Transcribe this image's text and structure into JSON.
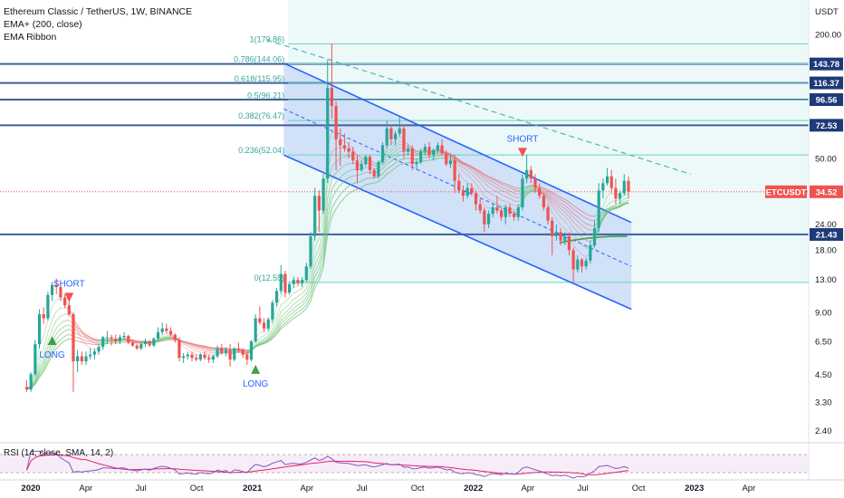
{
  "legend": {
    "symbol_line": "Ethereum Classic / TetherUS, 1W, BINANCE",
    "indicator_1": "EMA+ (200, close)",
    "indicator_2": "EMA Ribbon"
  },
  "rsi_legend": "RSI (14, close, SMA, 14, 2)",
  "currency": "USDT",
  "colors": {
    "up": "#26a69a",
    "down": "#ef5350",
    "channel": "#2962ff",
    "channel_fill": "#c9dbf7",
    "fib_zone": "#e6f7f5",
    "fib_line": "#6ad0c0",
    "hline": "#3f5f9e",
    "current": "#ef5350"
  },
  "chart_data": {
    "type": "candlestick",
    "title": "Ethereum Classic / TetherUS, 1W, BINANCE",
    "y_scale": "log",
    "x_ticks": [
      "2020",
      "Apr",
      "Jul",
      "Oct",
      "2021",
      "Apr",
      "Jul",
      "Oct",
      "2022",
      "Apr",
      "Jul",
      "Oct",
      "2023",
      "Apr"
    ],
    "x_tick_dates": [
      "2020-01-01",
      "2020-04-01",
      "2020-07-01",
      "2020-10-01",
      "2021-01-01",
      "2021-04-01",
      "2021-07-01",
      "2021-10-01",
      "2022-01-01",
      "2022-04-01",
      "2022-07-01",
      "2022-10-01",
      "2023-01-01",
      "2023-04-01"
    ],
    "y_ticks": [
      200.0,
      50.0,
      24.0,
      18.0,
      13.0,
      9.0,
      6.5,
      4.5,
      3.3,
      2.4
    ],
    "y_tick_labels": [
      "200.00",
      "50.00",
      "24.00",
      "18.00",
      "13.00",
      "9.00",
      "6.50",
      "4.50",
      "3.30",
      "2.40"
    ],
    "price_labels": [
      {
        "text": "143.78",
        "value": 143.78
      },
      {
        "text": "116.37",
        "value": 116.37
      },
      {
        "text": "96.56",
        "value": 96.56
      },
      {
        "text": "72.53",
        "value": 72.53
      },
      {
        "text": "21.43",
        "value": 21.43
      }
    ],
    "current": {
      "symbol": "ETCUSDT",
      "text": "34.52",
      "value": 34.52
    },
    "fib_levels": [
      {
        "label": "1(179.86)",
        "value": 179.86
      },
      {
        "label": "0.786(144.06)",
        "value": 144.06
      },
      {
        "label": "0.618(115.95)",
        "value": 115.95
      },
      {
        "label": "0.5(96.21)",
        "value": 96.21
      },
      {
        "label": "0.382(76.47)",
        "value": 76.47
      },
      {
        "label": "0.236(52.04)",
        "value": 52.04
      },
      {
        "label": "0(12.55)",
        "value": 12.55
      }
    ],
    "channel": {
      "upper": [
        [
          "2021-02-22",
          145
        ],
        [
          "2022-09-19",
          24.5
        ]
      ],
      "lower": [
        [
          "2021-02-22",
          52
        ],
        [
          "2022-09-19",
          9.3
        ]
      ],
      "mid": [
        [
          "2021-02-22",
          87
        ],
        [
          "2022-09-19",
          15
        ]
      ]
    },
    "trend_dashed": [
      [
        "2021-01-25",
        188
      ],
      [
        "2022-12-26",
        42
      ]
    ],
    "green_support": [
      [
        "2022-05-23",
        19.5
      ],
      [
        "2022-09-12",
        21
      ]
    ],
    "signals": [
      {
        "type": "short",
        "label": "SHORT",
        "date": "2020-03-02",
        "value": 10.3
      },
      {
        "type": "long",
        "label": "LONG",
        "date": "2020-02-03",
        "value": 6.9
      },
      {
        "type": "long",
        "label": "LONG",
        "date": "2021-01-04",
        "value": 5.0
      },
      {
        "type": "short",
        "label": "SHORT",
        "date": "2022-03-21",
        "value": 52
      }
    ],
    "candles": [
      [
        "2019-12-23",
        3.9,
        4.2,
        3.7,
        3.8
      ],
      [
        "2019-12-30",
        3.8,
        4.6,
        3.7,
        4.5
      ],
      [
        "2020-01-06",
        4.5,
        6.6,
        4.4,
        6.3
      ],
      [
        "2020-01-13",
        6.3,
        9.3,
        6.0,
        8.8
      ],
      [
        "2020-01-20",
        8.8,
        9.5,
        7.9,
        8.4
      ],
      [
        "2020-01-27",
        8.4,
        11.3,
        8.2,
        10.9
      ],
      [
        "2020-02-03",
        10.9,
        12.6,
        10.2,
        12.2
      ],
      [
        "2020-02-10",
        12.2,
        13.1,
        11.0,
        11.9
      ],
      [
        "2020-02-17",
        11.9,
        12.4,
        10.2,
        10.6
      ],
      [
        "2020-02-24",
        10.6,
        11.0,
        9.4,
        9.7
      ],
      [
        "2020-03-02",
        9.7,
        10.2,
        8.6,
        8.8
      ],
      [
        "2020-03-09",
        8.8,
        9.0,
        3.7,
        5.2
      ],
      [
        "2020-03-16",
        5.2,
        5.9,
        4.6,
        5.5
      ],
      [
        "2020-03-23",
        5.5,
        5.8,
        5.0,
        5.2
      ],
      [
        "2020-03-30",
        5.2,
        5.8,
        5.0,
        5.5
      ],
      [
        "2020-04-06",
        5.5,
        6.0,
        5.3,
        5.6
      ],
      [
        "2020-04-13",
        5.6,
        6.0,
        5.3,
        5.8
      ],
      [
        "2020-04-20",
        5.8,
        6.3,
        5.6,
        6.1
      ],
      [
        "2020-04-27",
        6.1,
        6.9,
        5.9,
        6.8
      ],
      [
        "2020-05-04",
        6.8,
        7.3,
        6.3,
        6.8
      ],
      [
        "2020-05-11",
        6.8,
        7.0,
        6.2,
        6.7
      ],
      [
        "2020-05-18",
        6.7,
        7.0,
        6.3,
        6.5
      ],
      [
        "2020-05-25",
        6.5,
        7.0,
        6.3,
        6.8
      ],
      [
        "2020-06-01",
        6.8,
        7.2,
        6.6,
        6.9
      ],
      [
        "2020-06-08",
        6.9,
        7.0,
        6.3,
        6.4
      ],
      [
        "2020-06-15",
        6.4,
        6.6,
        6.1,
        6.2
      ],
      [
        "2020-06-22",
        6.2,
        6.3,
        5.9,
        6.0
      ],
      [
        "2020-06-29",
        6.0,
        6.4,
        5.9,
        6.3
      ],
      [
        "2020-07-06",
        6.3,
        6.7,
        6.1,
        6.5
      ],
      [
        "2020-07-13",
        6.5,
        6.6,
        6.1,
        6.2
      ],
      [
        "2020-07-20",
        6.2,
        6.8,
        6.1,
        6.7
      ],
      [
        "2020-07-27",
        6.7,
        7.6,
        6.5,
        7.2
      ],
      [
        "2020-08-03",
        7.2,
        8.0,
        7.0,
        7.5
      ],
      [
        "2020-08-10",
        7.5,
        7.9,
        7.1,
        7.3
      ],
      [
        "2020-08-17",
        7.3,
        7.6,
        6.9,
        7.0
      ],
      [
        "2020-08-24",
        7.0,
        7.1,
        6.4,
        6.6
      ],
      [
        "2020-08-31",
        6.6,
        6.8,
        5.2,
        5.4
      ],
      [
        "2020-09-07",
        5.4,
        5.7,
        5.1,
        5.5
      ],
      [
        "2020-09-14",
        5.5,
        5.8,
        5.3,
        5.6
      ],
      [
        "2020-09-21",
        5.6,
        5.8,
        5.2,
        5.4
      ],
      [
        "2020-09-28",
        5.4,
        5.6,
        5.2,
        5.3
      ],
      [
        "2020-10-05",
        5.3,
        5.7,
        5.2,
        5.6
      ],
      [
        "2020-10-12",
        5.6,
        5.8,
        5.3,
        5.4
      ],
      [
        "2020-10-19",
        5.4,
        5.6,
        5.1,
        5.3
      ],
      [
        "2020-10-26",
        5.3,
        5.6,
        5.1,
        5.5
      ],
      [
        "2020-11-02",
        5.5,
        6.2,
        5.4,
        6.0
      ],
      [
        "2020-11-09",
        6.0,
        6.3,
        5.6,
        5.7
      ],
      [
        "2020-11-16",
        5.7,
        6.1,
        5.5,
        5.9
      ],
      [
        "2020-11-23",
        5.9,
        6.3,
        4.9,
        5.3
      ],
      [
        "2020-11-30",
        5.3,
        6.1,
        5.2,
        6.0
      ],
      [
        "2020-12-07",
        6.0,
        6.4,
        5.7,
        5.9
      ],
      [
        "2020-12-14",
        5.9,
        6.0,
        5.4,
        5.6
      ],
      [
        "2020-12-21",
        5.6,
        5.8,
        5.0,
        5.3
      ],
      [
        "2020-12-28",
        5.3,
        6.6,
        5.2,
        6.5
      ],
      [
        "2021-01-04",
        6.5,
        8.8,
        6.4,
        8.4
      ],
      [
        "2021-01-11",
        8.4,
        9.6,
        7.8,
        8.0
      ],
      [
        "2021-01-18",
        8.0,
        8.4,
        7.2,
        7.5
      ],
      [
        "2021-01-25",
        7.5,
        8.5,
        7.3,
        8.3
      ],
      [
        "2021-02-01",
        8.3,
        10.3,
        8.0,
        10.0
      ],
      [
        "2021-02-08",
        10.0,
        11.8,
        9.6,
        11.4
      ],
      [
        "2021-02-15",
        11.4,
        15.2,
        11.0,
        13.8
      ],
      [
        "2021-02-22",
        13.8,
        14.3,
        10.6,
        11.2
      ],
      [
        "2021-03-01",
        11.2,
        12.6,
        10.9,
        12.3
      ],
      [
        "2021-03-08",
        12.3,
        13.4,
        11.8,
        12.9
      ],
      [
        "2021-03-15",
        12.9,
        13.3,
        12.1,
        12.4
      ],
      [
        "2021-03-22",
        12.4,
        13.3,
        11.9,
        12.9
      ],
      [
        "2021-03-29",
        12.9,
        15.6,
        12.6,
        15.0
      ],
      [
        "2021-04-05",
        15.0,
        22.0,
        14.6,
        21.0
      ],
      [
        "2021-04-12",
        21.0,
        36.0,
        20.0,
        33.0
      ],
      [
        "2021-04-19",
        33.0,
        35.0,
        22.0,
        28.0
      ],
      [
        "2021-04-26",
        28.0,
        42.0,
        27.0,
        40.0
      ],
      [
        "2021-05-03",
        40.0,
        150.0,
        38.0,
        110.0
      ],
      [
        "2021-05-10",
        110.0,
        180.0,
        78.0,
        90.0
      ],
      [
        "2021-05-17",
        90.0,
        95.0,
        44.0,
        62.0
      ],
      [
        "2021-05-24",
        62.0,
        70.0,
        46.0,
        58.0
      ],
      [
        "2021-05-31",
        58.0,
        66.0,
        54.0,
        56.0
      ],
      [
        "2021-06-07",
        56.0,
        60.0,
        50.0,
        54.0
      ],
      [
        "2021-06-14",
        54.0,
        57.0,
        47.0,
        49.0
      ],
      [
        "2021-06-21",
        49.0,
        52.0,
        38.0,
        44.0
      ],
      [
        "2021-06-28",
        44.0,
        49.0,
        43.0,
        47.0
      ],
      [
        "2021-07-05",
        47.0,
        52.0,
        46.0,
        51.0
      ],
      [
        "2021-07-12",
        51.0,
        52.0,
        42.0,
        44.0
      ],
      [
        "2021-07-19",
        44.0,
        45.0,
        40.0,
        41.0
      ],
      [
        "2021-07-26",
        41.0,
        49.0,
        40.0,
        48.0
      ],
      [
        "2021-08-02",
        48.0,
        60.0,
        47.0,
        58.0
      ],
      [
        "2021-08-09",
        58.0,
        76.0,
        56.0,
        70.0
      ],
      [
        "2021-08-16",
        70.0,
        73.0,
        58.0,
        62.0
      ],
      [
        "2021-08-23",
        62.0,
        68.0,
        58.0,
        66.0
      ],
      [
        "2021-08-30",
        66.0,
        80.0,
        64.0,
        70.0
      ],
      [
        "2021-09-06",
        70.0,
        73.0,
        50.0,
        54.0
      ],
      [
        "2021-09-13",
        54.0,
        58.0,
        52.0,
        56.0
      ],
      [
        "2021-09-20",
        56.0,
        58.0,
        44.0,
        47.0
      ],
      [
        "2021-09-27",
        47.0,
        50.0,
        44.0,
        48.0
      ],
      [
        "2021-10-04",
        48.0,
        56.0,
        47.0,
        54.0
      ],
      [
        "2021-10-11",
        54.0,
        59.0,
        52.0,
        57.0
      ],
      [
        "2021-10-18",
        57.0,
        60.0,
        50.0,
        52.0
      ],
      [
        "2021-10-25",
        52.0,
        56.0,
        49.0,
        55.0
      ],
      [
        "2021-11-01",
        55.0,
        60.0,
        53.0,
        58.0
      ],
      [
        "2021-11-08",
        58.0,
        62.0,
        52.0,
        53.0
      ],
      [
        "2021-11-15",
        53.0,
        55.0,
        46.0,
        47.0
      ],
      [
        "2021-11-22",
        47.0,
        52.0,
        45.0,
        49.0
      ],
      [
        "2021-11-29",
        49.0,
        52.0,
        34.0,
        39.0
      ],
      [
        "2021-12-06",
        39.0,
        42.0,
        34.0,
        35.0
      ],
      [
        "2021-12-13",
        35.0,
        37.0,
        31.0,
        33.0
      ],
      [
        "2021-12-20",
        33.0,
        38.0,
        32.0,
        36.0
      ],
      [
        "2021-12-27",
        36.0,
        38.0,
        33.0,
        34.0
      ],
      [
        "2022-01-03",
        34.0,
        35.0,
        28.0,
        30.0
      ],
      [
        "2022-01-10",
        30.0,
        32.0,
        27.0,
        28.0
      ],
      [
        "2022-01-17",
        28.0,
        29.0,
        22.0,
        24.0
      ],
      [
        "2022-01-24",
        24.0,
        28.0,
        23.0,
        27.0
      ],
      [
        "2022-01-31",
        27.0,
        30.0,
        26.0,
        29.0
      ],
      [
        "2022-02-07",
        29.0,
        33.0,
        27.0,
        28.0
      ],
      [
        "2022-02-14",
        28.0,
        29.0,
        25.0,
        26.0
      ],
      [
        "2022-02-21",
        26.0,
        30.0,
        24.0,
        29.0
      ],
      [
        "2022-02-28",
        29.0,
        30.0,
        26.0,
        27.0
      ],
      [
        "2022-03-07",
        27.0,
        28.0,
        25.0,
        26.0
      ],
      [
        "2022-03-14",
        26.0,
        30.0,
        25.0,
        29.0
      ],
      [
        "2022-03-21",
        29.0,
        42.0,
        28.0,
        40.0
      ],
      [
        "2022-03-28",
        40.0,
        52.0,
        38.0,
        44.0
      ],
      [
        "2022-04-04",
        44.0,
        46.0,
        38.0,
        40.0
      ],
      [
        "2022-04-11",
        40.0,
        42.0,
        34.0,
        36.0
      ],
      [
        "2022-04-18",
        36.0,
        38.0,
        32.0,
        33.0
      ],
      [
        "2022-04-25",
        33.0,
        34.0,
        28.0,
        29.0
      ],
      [
        "2022-05-02",
        29.0,
        30.0,
        24.0,
        25.0
      ],
      [
        "2022-05-09",
        25.0,
        26.0,
        17.0,
        21.0
      ],
      [
        "2022-05-16",
        21.0,
        24.0,
        20.0,
        22.0
      ],
      [
        "2022-05-23",
        22.0,
        23.0,
        19.0,
        20.0
      ],
      [
        "2022-05-30",
        20.0,
        22.0,
        19.0,
        21.0
      ],
      [
        "2022-06-06",
        21.0,
        22.0,
        17.0,
        18.0
      ],
      [
        "2022-06-13",
        18.0,
        18.5,
        12.6,
        14.5
      ],
      [
        "2022-06-20",
        14.5,
        17.0,
        14.0,
        16.2
      ],
      [
        "2022-06-27",
        16.2,
        16.5,
        14.0,
        15.0
      ],
      [
        "2022-07-04",
        15.0,
        16.5,
        14.5,
        16.0
      ],
      [
        "2022-07-11",
        16.0,
        20.0,
        15.5,
        19.0
      ],
      [
        "2022-07-18",
        19.0,
        25.0,
        18.5,
        23.0
      ],
      [
        "2022-07-25",
        23.0,
        38.0,
        22.0,
        35.0
      ],
      [
        "2022-08-01",
        35.0,
        40.0,
        32.0,
        38.0
      ],
      [
        "2022-08-08",
        38.0,
        45.0,
        37.0,
        41.0
      ],
      [
        "2022-08-15",
        41.0,
        44.0,
        34.0,
        36.0
      ],
      [
        "2022-08-22",
        36.0,
        40.0,
        30.0,
        32.0
      ],
      [
        "2022-08-29",
        32.0,
        35.0,
        30.0,
        34.0
      ],
      [
        "2022-09-05",
        34.0,
        42.0,
        33.0,
        39.0
      ],
      [
        "2022-09-12",
        39.0,
        41.0,
        32.0,
        34.52
      ]
    ]
  }
}
